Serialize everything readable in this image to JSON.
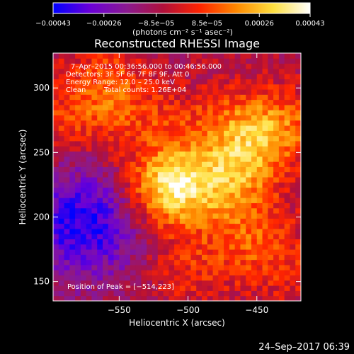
{
  "chart_data": {
    "type": "heatmap",
    "title": "Reconstructed RHESSI Image",
    "xlabel": "Heliocentric X (arcsec)",
    "ylabel": "Heliocentric Y (arcsec)",
    "xlim": [
      -598,
      -418
    ],
    "ylim": [
      135,
      327
    ],
    "x_ticks": [
      -550,
      -500,
      -450
    ],
    "y_ticks": [
      150,
      200,
      250,
      300
    ],
    "x_tick_labels": [
      "−550",
      "−500",
      "−450"
    ],
    "y_tick_labels": [
      "150",
      "200",
      "250",
      "300"
    ],
    "colorbar": {
      "range": [
        -0.00043,
        0.00043
      ],
      "ticks": [
        -0.00043,
        -0.00026,
        -8.5e-05,
        8.5e-05,
        0.00026,
        0.00043
      ],
      "tick_labels": [
        "−0.00043",
        "−0.00026",
        "−8.5e−05",
        "8.5e−05",
        "0.00026",
        "0.00043"
      ],
      "units_text": "(photons cm⁻² s⁻¹ asec⁻²)",
      "colormap": [
        "#0000ff",
        "#6a00d8",
        "#8a1a90",
        "#b0103a",
        "#ff2400",
        "#ff8a00",
        "#ffe040",
        "#ffffff"
      ]
    },
    "annotations": {
      "time": "7–Apr–2015 00:36:56.000 to 00:46:56.000",
      "detectors": "Detectors: 3F 5F 6F 7F 8F 9F, Att 0",
      "energy": "Energy Range: 12.0 – 25.0 keV",
      "method": "Clean",
      "counts": "Total counts: 1.26E+04",
      "peak": "Position of Peak = [−514,223]"
    },
    "peak": [
      -514,
      223
    ],
    "sources": [
      {
        "x": -514,
        "y": 223,
        "amp": 0.00043
      },
      {
        "x": -470,
        "y": 232,
        "amp": 0.00026
      },
      {
        "x": -448,
        "y": 262,
        "amp": 0.00022
      },
      {
        "x": -560,
        "y": 305,
        "amp": 0.00018
      },
      {
        "x": -455,
        "y": 185,
        "amp": 0.00015
      },
      {
        "x": -500,
        "y": 160,
        "amp": 0.00012
      },
      {
        "x": -430,
        "y": 160,
        "amp": 0.0001
      }
    ],
    "background_low_region": {
      "x": -575,
      "y": 195,
      "amp": -0.00032
    }
  },
  "footer": {
    "timestamp": "24–Sep–2017 06:39"
  }
}
